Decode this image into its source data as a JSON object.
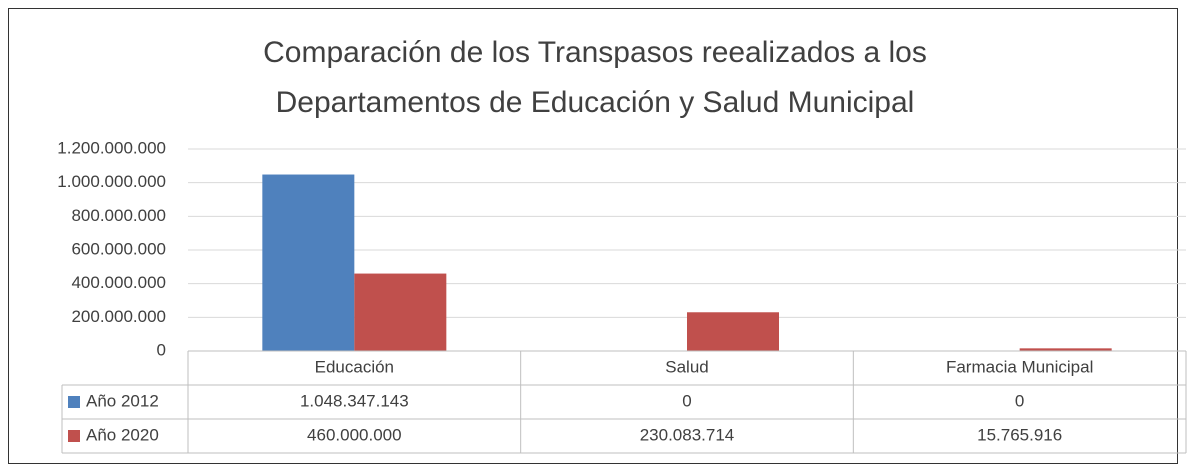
{
  "chart_data": {
    "type": "bar",
    "title": "Comparación de los Transpasos reealizados a los Departamentos de Educación y Salud Municipal",
    "categories": [
      "Educación",
      "Salud",
      "Farmacia Municipal"
    ],
    "series": [
      {
        "name": "Año 2012",
        "color": "#4f81bd",
        "values": [
          1048347143,
          0,
          0
        ],
        "value_labels": [
          "1.048.347.143",
          "0",
          "0"
        ]
      },
      {
        "name": "Año 2020",
        "color": "#c0504d",
        "values": [
          460000000,
          230083714,
          15765916
        ],
        "value_labels": [
          "460.000.000",
          "230.083.714",
          "15.765.916"
        ]
      }
    ],
    "ylim": [
      0,
      1200000000
    ],
    "yticks": [
      0,
      {
        "value": 200000000,
        "label": "200.000.000"
      },
      {
        "value": 400000000,
        "label": "400.000.000"
      },
      {
        "value": 600000000,
        "label": "600.000.000"
      },
      {
        "value": 800000000,
        "label": "800.000.000"
      },
      {
        "value": 1000000000,
        "label": "1.000.000.000"
      },
      {
        "value": 1200000000,
        "label": "1.200.000.000"
      }
    ],
    "grid": true,
    "legend": "table"
  }
}
